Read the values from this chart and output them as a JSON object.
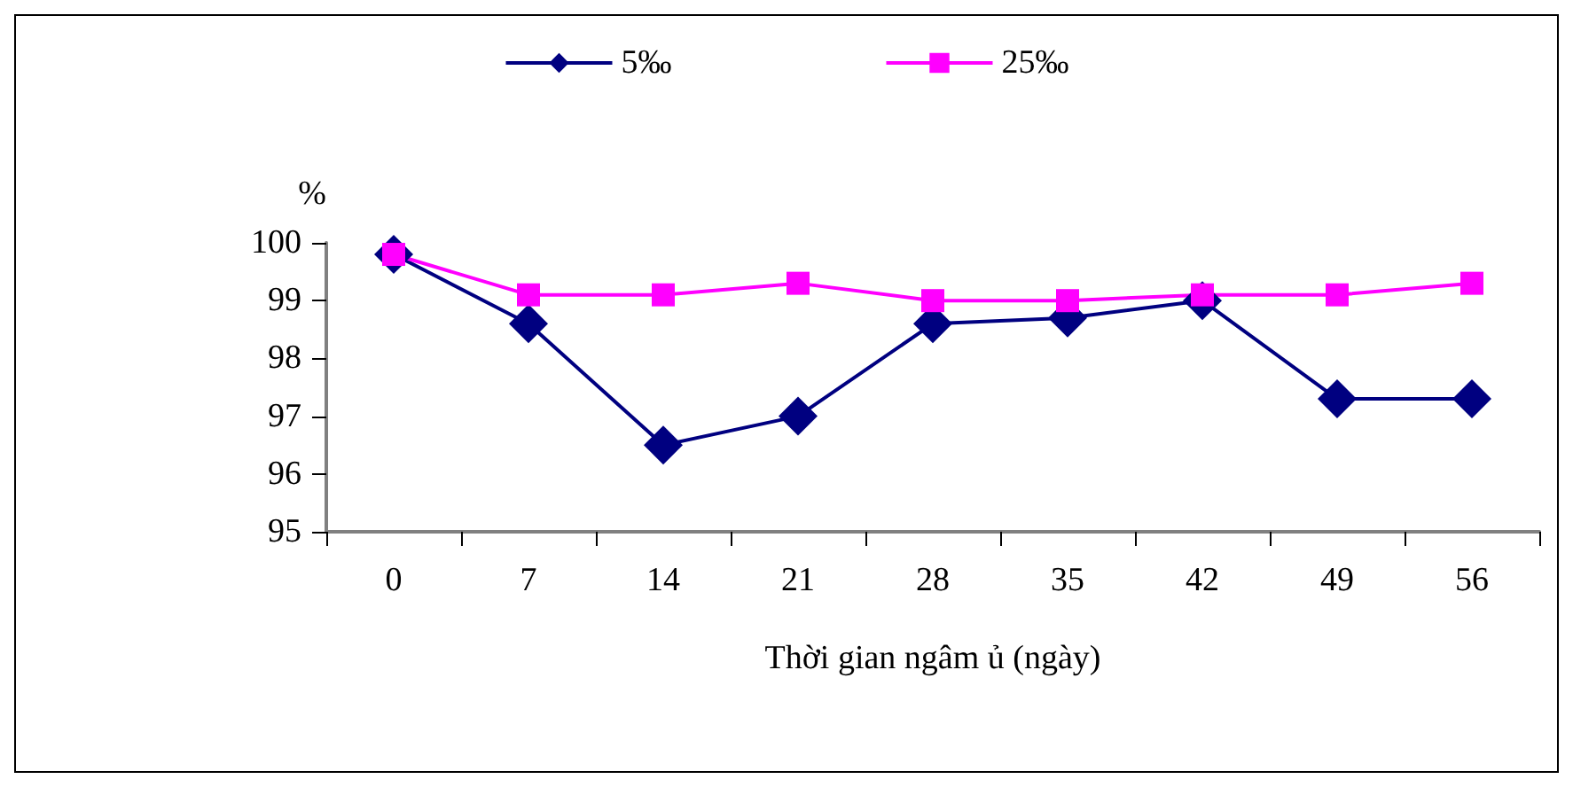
{
  "chart_data": {
    "type": "line",
    "ylabel": "%",
    "xlabel": "Thời gian ngâm ủ (ngày)",
    "categories": [
      "0",
      "7",
      "14",
      "21",
      "28",
      "35",
      "42",
      "49",
      "56"
    ],
    "series": [
      {
        "name": "5‰",
        "color": "#000080",
        "marker": "diamond",
        "values": [
          99.8,
          98.6,
          96.5,
          97.0,
          98.6,
          98.7,
          99.0,
          97.3,
          97.3
        ]
      },
      {
        "name": "25‰",
        "color": "#ff00ff",
        "marker": "square",
        "values": [
          99.8,
          99.1,
          99.1,
          99.3,
          99.0,
          99.0,
          99.1,
          99.1,
          99.3
        ]
      }
    ],
    "ylim": [
      95,
      100
    ],
    "yticks": [
      95,
      96,
      97,
      98,
      99,
      100
    ],
    "grid": false,
    "legend": "top",
    "line_style": "solid"
  }
}
